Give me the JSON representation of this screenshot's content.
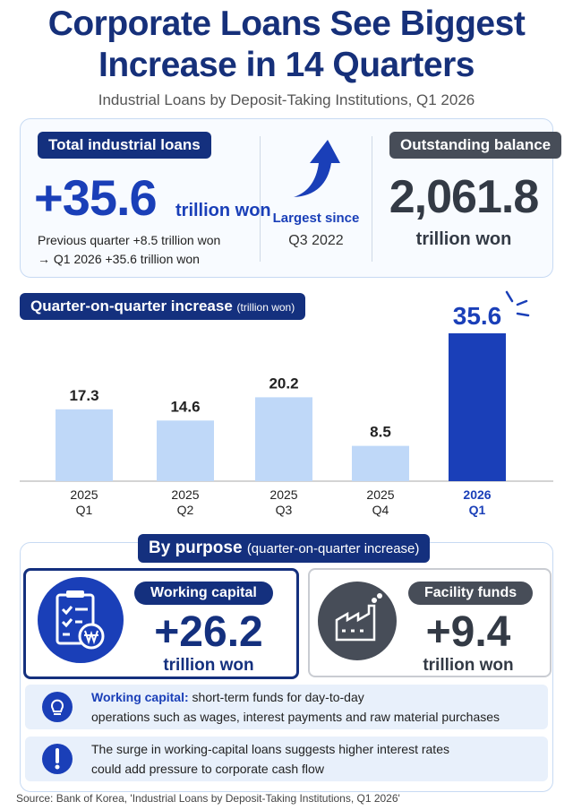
{
  "header": {
    "title": "Corporate Loans See Biggest Increase in 14 Quarters",
    "subtitle": "Industrial Loans by Deposit-Taking Institutions, Q1 2026"
  },
  "summary": {
    "total": {
      "label": "Total industrial loans",
      "value": "+35.6",
      "unit": "trillion won",
      "note_lines": [
        "Previous quarter +8.5 trillion won",
        "→ Q1 2026 +35.6 trillion won"
      ]
    },
    "highlight": {
      "lines": [
        "Largest since",
        "Q3 2022"
      ]
    },
    "balance": {
      "label": "Outstanding balance",
      "value": "2,061.8",
      "unit": "trillion won"
    }
  },
  "chart_data": {
    "type": "bar",
    "title": "Quarter-on-quarter increase",
    "unit": "(trillion won)",
    "categories": [
      [
        "2025",
        "Q1"
      ],
      [
        "2025",
        "Q2"
      ],
      [
        "2025",
        "Q3"
      ],
      [
        "2025",
        "Q4"
      ],
      [
        "2026",
        "Q1"
      ]
    ],
    "values": [
      17.3,
      14.6,
      20.2,
      8.5,
      35.6
    ],
    "colors": [
      "#bfd8f8",
      "#bfd8f8",
      "#bfd8f8",
      "#bfd8f8",
      "#1a3fb8"
    ]
  },
  "purpose": {
    "title": "By purpose",
    "subtitle": "(quarter-on-quarter increase)",
    "items": [
      {
        "label": "Working capital",
        "value": "+26.2",
        "unit": "trillion won"
      },
      {
        "label": "Facility funds",
        "value": "+9.4",
        "unit": "trillion won"
      }
    ]
  },
  "notes": [
    {
      "term": "Working capital:",
      "lines": [
        "short-term funds for day-to-day",
        "operations such as wages, interest payments and raw material purchases"
      ]
    },
    {
      "lines": [
        "The surge in working-capital loans suggests higher interest rates",
        "could add pressure to corporate cash flow"
      ]
    }
  ],
  "source": "Source: Bank of Korea, 'Industrial Loans by Deposit-Taking Institutions, Q1 2026'"
}
